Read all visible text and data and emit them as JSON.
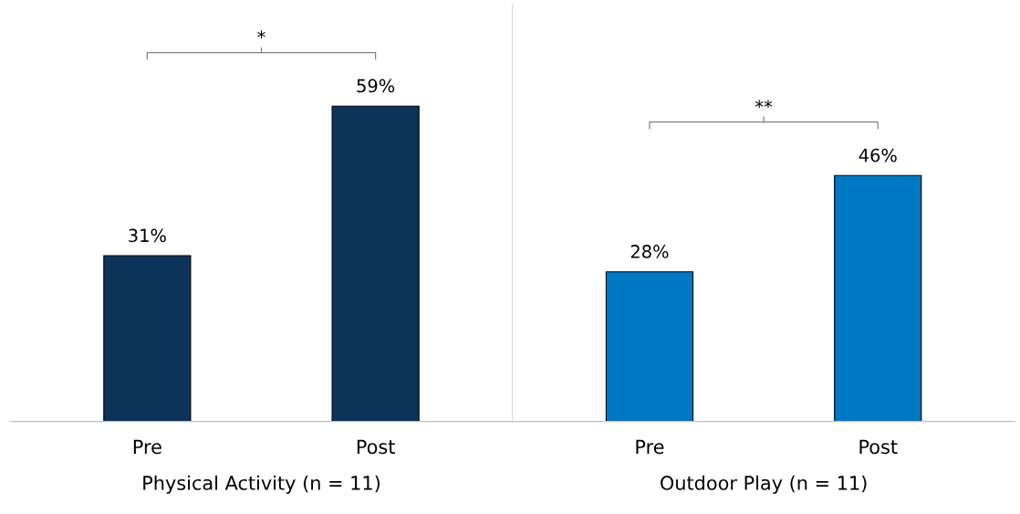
{
  "chart_data": [
    {
      "type": "bar",
      "categories": [
        "Pre",
        "Post"
      ],
      "values": [
        31,
        59
      ],
      "colors": [
        "#0d3358",
        "#0d3358"
      ],
      "value_labels": [
        "31%",
        "59%"
      ],
      "xlabel": "Physical Activity (n = 11)",
      "annotations": [
        "*"
      ],
      "grid": false
    },
    {
      "type": "bar",
      "categories": [
        "Pre",
        "Post"
      ],
      "values": [
        28,
        46
      ],
      "colors": [
        "#0077c1",
        "#0077c1"
      ],
      "value_labels": [
        "28%",
        "46%"
      ],
      "xlabel": "Outdoor Play (n = 11)",
      "annotations": [
        "**"
      ],
      "grid": false
    }
  ]
}
